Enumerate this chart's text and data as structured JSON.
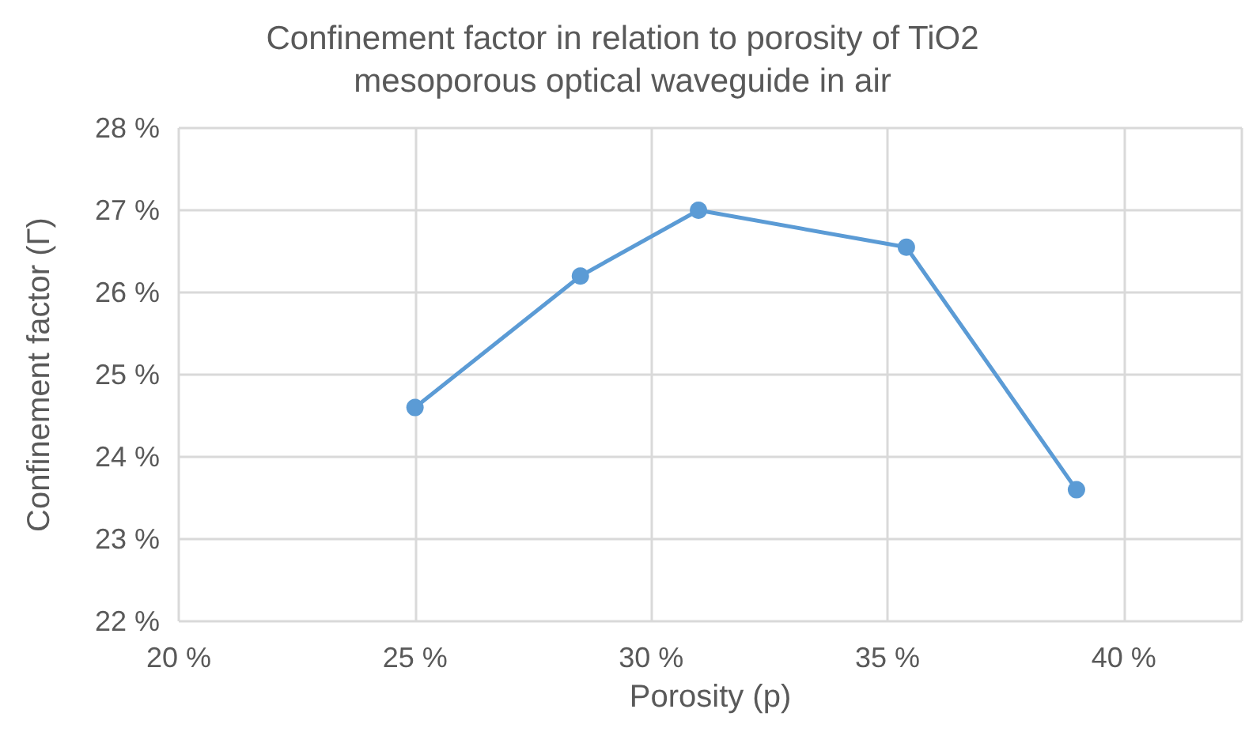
{
  "chart_data": {
    "type": "line",
    "title": "Confinement factor in relation to porosity of TiO2\nmesoporous optical waveguide in air",
    "xlabel": "Porosity (p)",
    "ylabel": "Confinement factor (Γ)",
    "x": [
      25,
      28.5,
      31,
      35.4,
      39
    ],
    "series": [
      {
        "color": "#5b9bd5",
        "values": [
          24.6,
          26.2,
          27.0,
          26.55,
          23.6
        ]
      }
    ],
    "xlim": [
      20,
      42.5
    ],
    "xticks": [
      {
        "value": 20,
        "label": "20 %"
      },
      {
        "value": 25,
        "label": "25 %"
      },
      {
        "value": 30,
        "label": "30 %"
      },
      {
        "value": 35,
        "label": "35 %"
      },
      {
        "value": 40,
        "label": "40 %"
      }
    ],
    "ylim": [
      22,
      28
    ],
    "yticks": [
      {
        "value": 22,
        "label": "22 %"
      },
      {
        "value": 23,
        "label": "23 %"
      },
      {
        "value": 24,
        "label": "24 %"
      },
      {
        "value": 25,
        "label": "25 %"
      },
      {
        "value": 26,
        "label": "26 %"
      },
      {
        "value": 27,
        "label": "27 %"
      },
      {
        "value": 28,
        "label": "28 %"
      }
    ],
    "grid": true,
    "marker": "circle",
    "line_style": "solid"
  }
}
